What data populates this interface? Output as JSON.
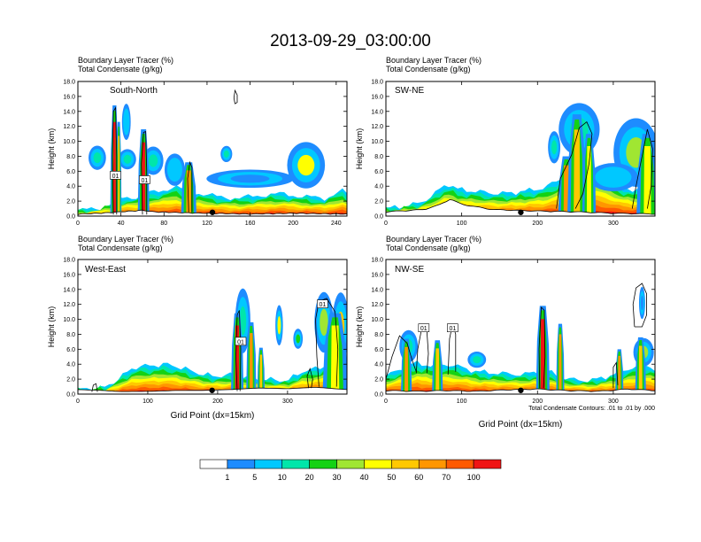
{
  "title": "2013-09-29_03:00:00",
  "chart_data": {
    "type": "heatmap",
    "title": "2013-09-29_03:00:00",
    "panels": [
      {
        "key": "south-north",
        "label": "South-North",
        "header_line1": "Boundary Layer Tracer    (%)",
        "header_line2": "Total Condensate    (g/kg)",
        "ylabel": "Height (km)",
        "xlabel": "",
        "ylim": [
          0,
          18
        ],
        "xlim": [
          0,
          250
        ],
        "xticks": [
          0,
          40,
          80,
          120,
          160,
          200,
          240
        ],
        "yticks": [
          "0.0",
          "2.0",
          "4.0",
          "6.0",
          "8.0",
          "10.0",
          "12.0",
          "14.0",
          "16.0",
          "18.0"
        ],
        "marker_x": 125,
        "contour_labels": [
          {
            "text": "01",
            "x": 35,
            "y": 5.4
          },
          {
            "text": "01",
            "x": 62,
            "y": 4.8
          }
        ],
        "note": ""
      },
      {
        "key": "sw-ne",
        "label": "SW-NE",
        "header_line1": "Boundary Layer Tracer    (%)",
        "header_line2": "Total Condensate    (g/kg)",
        "ylabel": "Height (km)",
        "xlabel": "",
        "ylim": [
          0,
          18
        ],
        "xlim": [
          0,
          355
        ],
        "xticks": [
          0,
          100,
          200,
          300
        ],
        "yticks": [
          "0.0",
          "2.0",
          "4.0",
          "6.0",
          "8.0",
          "10.0",
          "12.0",
          "14.0",
          "16.0",
          "18.0"
        ],
        "marker_x": 178,
        "contour_labels": [],
        "note": ""
      },
      {
        "key": "west-east",
        "label": "West-East",
        "header_line1": "Boundary Layer Tracer    (%)",
        "header_line2": "Total Condensate    (g/kg)",
        "ylabel": "Height (km)",
        "xlabel": "Grid Point (dx=15km)",
        "ylim": [
          0,
          18
        ],
        "xlim": [
          0,
          385
        ],
        "xticks": [
          0,
          100,
          200,
          300
        ],
        "yticks": [
          "0.0",
          "2.0",
          "4.0",
          "6.0",
          "8.0",
          "10.0",
          "12.0",
          "14.0",
          "16.0",
          "18.0"
        ],
        "marker_x": 192,
        "contour_labels": [
          {
            "text": "01",
            "x": 233,
            "y": 7.0
          },
          {
            "text": "01",
            "x": 350,
            "y": 12.0
          }
        ],
        "note": ""
      },
      {
        "key": "nw-se",
        "label": "NW-SE",
        "header_line1": "Boundary Layer Tracer    (%)",
        "header_line2": "Total Condensate    (g/kg)",
        "ylabel": "Height (km)",
        "xlabel": "Grid Point (dx=15km)",
        "ylim": [
          0,
          18
        ],
        "xlim": [
          0,
          355
        ],
        "xticks": [
          0,
          100,
          200,
          300
        ],
        "yticks": [
          "0.0",
          "2.0",
          "4.0",
          "6.0",
          "8.0",
          "10.0",
          "12.0",
          "14.0",
          "16.0",
          "18.0"
        ],
        "marker_x": 178,
        "contour_labels": [
          {
            "text": "01",
            "x": 50,
            "y": 8.8
          },
          {
            "text": "01",
            "x": 88,
            "y": 8.8
          }
        ],
        "note": "Total Condensate Contours: .01 to .01 by .000"
      }
    ],
    "colorbar": {
      "boundaries": [
        "1",
        "5",
        "10",
        "20",
        "30",
        "40",
        "50",
        "60",
        "70",
        "100"
      ],
      "colors": [
        "#ffffff",
        "#1e8cff",
        "#00c8ff",
        "#00e6aa",
        "#14d214",
        "#a0e632",
        "#ffff00",
        "#ffc800",
        "#ff9600",
        "#ff5a00",
        "#f01414"
      ]
    }
  }
}
